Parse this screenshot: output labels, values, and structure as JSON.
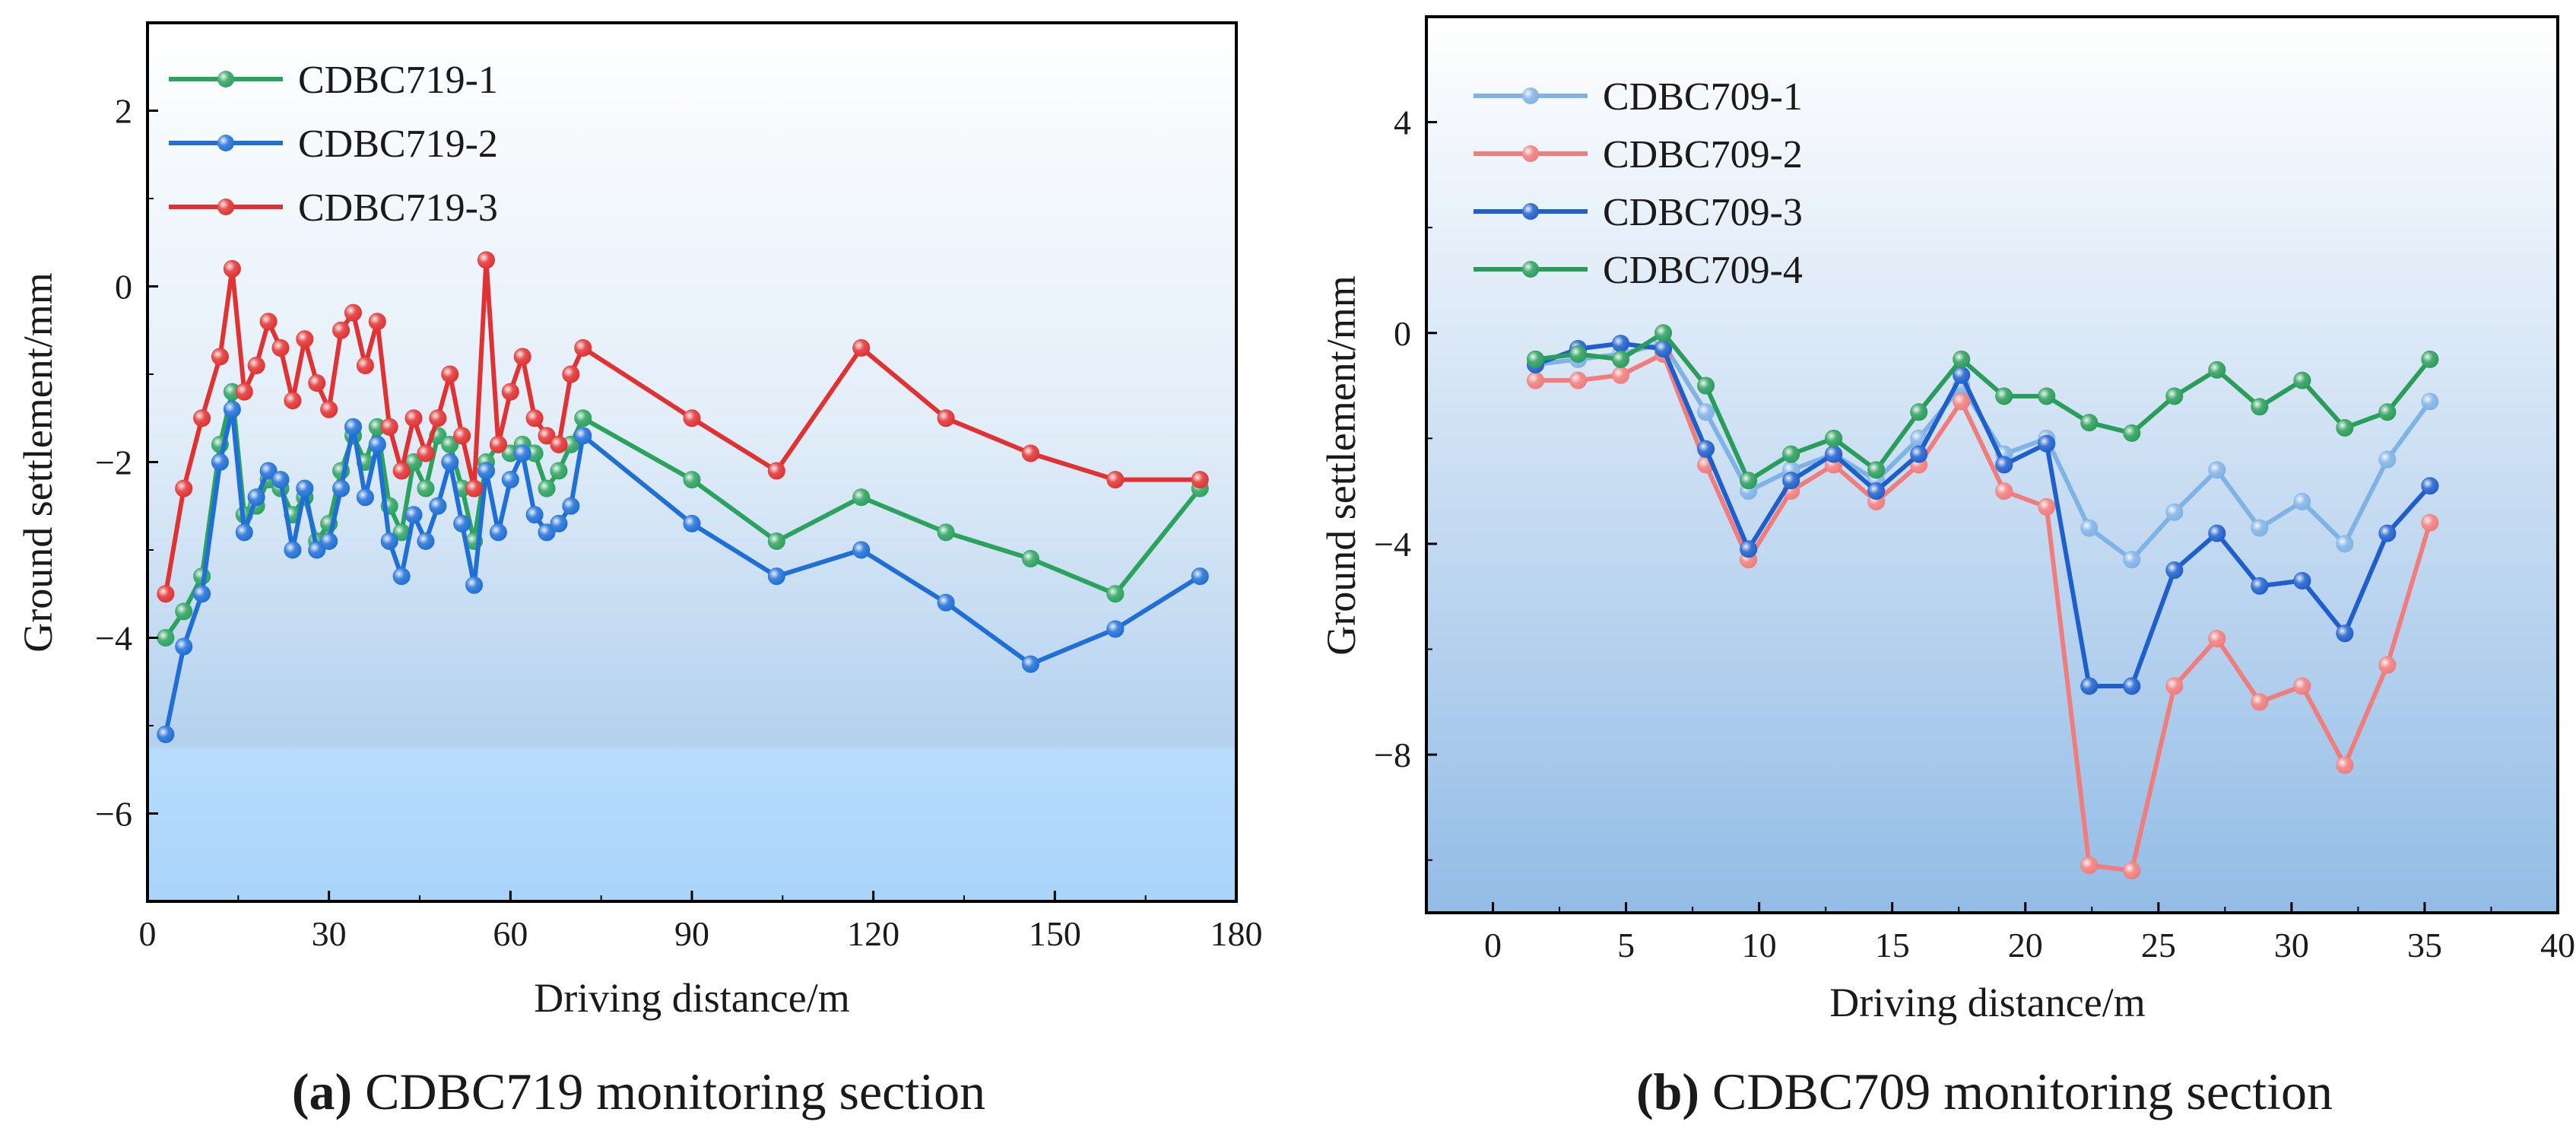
{
  "figure": {
    "caption_a_letter": "(a)",
    "caption_a_text": " CDBC719 monitoring section",
    "caption_b_letter": "(b)",
    "caption_b_text": " CDBC709 monitoring section"
  },
  "chart_data": [
    {
      "type": "line",
      "panel": "a",
      "title": "",
      "xlabel": "Driving distance/m",
      "ylabel": "Ground settlement/mm",
      "xlim": [
        0,
        180
      ],
      "ylim": [
        -7,
        3
      ],
      "xticks": [
        0,
        30,
        60,
        90,
        120,
        150,
        180
      ],
      "yticks": [
        -6,
        -4,
        -2,
        0,
        2
      ],
      "ytick_labels": [
        "−6",
        "−4",
        "−2",
        "0",
        "2"
      ],
      "legend_position": "top-left",
      "grid": false,
      "series": [
        {
          "name": "CDBC719-1",
          "color": "#2ca25f",
          "x": [
            3,
            6,
            9,
            12,
            14,
            16,
            18,
            20,
            22,
            24,
            26,
            28,
            30,
            32,
            34,
            36,
            38,
            40,
            42,
            44,
            46,
            48,
            50,
            52,
            54,
            56,
            58,
            60,
            62,
            64,
            66,
            68,
            70,
            72,
            90,
            104,
            118,
            132,
            146,
            160,
            174
          ],
          "values": [
            -4.0,
            -3.7,
            -3.3,
            -1.8,
            -1.2,
            -2.6,
            -2.5,
            -2.2,
            -2.3,
            -2.6,
            -2.4,
            -2.9,
            -2.7,
            -2.1,
            -1.7,
            -2.0,
            -1.6,
            -2.5,
            -2.8,
            -2.0,
            -2.3,
            -1.7,
            -1.8,
            -2.3,
            -2.9,
            -2.0,
            -1.8,
            -1.9,
            -1.8,
            -1.9,
            -2.3,
            -2.1,
            -1.8,
            -1.5,
            -2.2,
            -2.9,
            -2.4,
            -2.8,
            -3.1,
            -3.5,
            -2.3
          ]
        },
        {
          "name": "CDBC719-2",
          "color": "#1f6fd6",
          "x": [
            3,
            6,
            9,
            12,
            14,
            16,
            18,
            20,
            22,
            24,
            26,
            28,
            30,
            32,
            34,
            36,
            38,
            40,
            42,
            44,
            46,
            48,
            50,
            52,
            54,
            56,
            58,
            60,
            62,
            64,
            66,
            68,
            70,
            72,
            90,
            104,
            118,
            132,
            146,
            160,
            174
          ],
          "values": [
            -5.1,
            -4.1,
            -3.5,
            -2.0,
            -1.4,
            -2.8,
            -2.4,
            -2.1,
            -2.2,
            -3.0,
            -2.3,
            -3.0,
            -2.9,
            -2.3,
            -1.6,
            -2.4,
            -1.8,
            -2.9,
            -3.3,
            -2.6,
            -2.9,
            -2.5,
            -2.0,
            -2.7,
            -3.4,
            -2.1,
            -2.8,
            -2.2,
            -1.9,
            -2.6,
            -2.8,
            -2.7,
            -2.5,
            -1.7,
            -2.7,
            -3.3,
            -3.0,
            -3.6,
            -4.3,
            -3.9,
            -3.3
          ]
        },
        {
          "name": "CDBC719-3",
          "color": "#e03232",
          "x": [
            3,
            6,
            9,
            12,
            14,
            16,
            18,
            20,
            22,
            24,
            26,
            28,
            30,
            32,
            34,
            36,
            38,
            40,
            42,
            44,
            46,
            48,
            50,
            52,
            54,
            56,
            58,
            60,
            62,
            64,
            66,
            68,
            70,
            72,
            90,
            104,
            118,
            132,
            146,
            160,
            174
          ],
          "values": [
            -3.5,
            -2.3,
            -1.5,
            -0.8,
            0.2,
            -1.2,
            -0.9,
            -0.4,
            -0.7,
            -1.3,
            -0.6,
            -1.1,
            -1.4,
            -0.5,
            -0.3,
            -0.9,
            -0.4,
            -1.6,
            -2.1,
            -1.5,
            -1.9,
            -1.5,
            -1.0,
            -1.7,
            -2.3,
            0.3,
            -1.8,
            -1.2,
            -0.8,
            -1.5,
            -1.7,
            -1.8,
            -1.0,
            -0.7,
            -1.5,
            -2.1,
            -0.7,
            -1.5,
            -1.9,
            -2.2,
            -2.2
          ]
        }
      ]
    },
    {
      "type": "line",
      "panel": "b",
      "title": "",
      "xlabel": "Driving distance/m",
      "ylabel": "Ground settlement/mm",
      "xlim": [
        -2.5,
        40
      ],
      "ylim": [
        -11,
        6
      ],
      "xticks": [
        0,
        5,
        10,
        15,
        20,
        25,
        30,
        35,
        40
      ],
      "yticks": [
        -8,
        -4,
        0,
        4
      ],
      "ytick_labels": [
        "−8",
        "−4",
        "0",
        "4"
      ],
      "legend_position": "top-left",
      "grid": false,
      "series": [
        {
          "name": "CDBC709-1",
          "color": "#7fb2e5",
          "x": [
            1.6,
            3.2,
            4.8,
            6.4,
            8.0,
            9.6,
            11.2,
            12.8,
            14.4,
            16.0,
            17.6,
            19.2,
            20.8,
            22.4,
            24.0,
            25.6,
            27.2,
            28.8,
            30.4,
            32.0,
            33.6,
            35.2
          ],
          "values": [
            -0.6,
            -0.5,
            -0.4,
            -0.2,
            -1.5,
            -3.0,
            -2.6,
            -2.3,
            -2.8,
            -2.0,
            -1.0,
            -2.3,
            -2.0,
            -3.7,
            -4.3,
            -3.4,
            -2.6,
            -3.7,
            -3.2,
            -4.0,
            -2.4,
            -1.3
          ]
        },
        {
          "name": "CDBC709-2",
          "color": "#f07c7c",
          "x": [
            1.6,
            3.2,
            4.8,
            6.4,
            8.0,
            9.6,
            11.2,
            12.8,
            14.4,
            16.0,
            17.6,
            19.2,
            20.8,
            22.4,
            24.0,
            25.6,
            27.2,
            28.8,
            30.4,
            32.0,
            33.6,
            35.2
          ],
          "values": [
            -0.9,
            -0.9,
            -0.8,
            -0.4,
            -2.5,
            -4.3,
            -3.0,
            -2.5,
            -3.2,
            -2.5,
            -1.3,
            -3.0,
            -3.3,
            -10.1,
            -10.2,
            -6.7,
            -5.8,
            -7.0,
            -6.7,
            -8.2,
            -6.3,
            -3.6
          ]
        },
        {
          "name": "CDBC709-3",
          "color": "#1f5fcc",
          "x": [
            1.6,
            3.2,
            4.8,
            6.4,
            8.0,
            9.6,
            11.2,
            12.8,
            14.4,
            16.0,
            17.6,
            19.2,
            20.8,
            22.4,
            24.0,
            25.6,
            27.2,
            28.8,
            30.4,
            32.0,
            33.6,
            35.2
          ],
          "values": [
            -0.6,
            -0.3,
            -0.2,
            -0.3,
            -2.2,
            -4.1,
            -2.8,
            -2.3,
            -3.0,
            -2.3,
            -0.8,
            -2.5,
            -2.1,
            -6.7,
            -6.7,
            -4.5,
            -3.8,
            -4.8,
            -4.7,
            -5.7,
            -3.8,
            -2.9
          ]
        },
        {
          "name": "CDBC709-4",
          "color": "#2a9d5a",
          "x": [
            1.6,
            3.2,
            4.8,
            6.4,
            8.0,
            9.6,
            11.2,
            12.8,
            14.4,
            16.0,
            17.6,
            19.2,
            20.8,
            22.4,
            24.0,
            25.6,
            27.2,
            28.8,
            30.4,
            32.0,
            33.6,
            35.2
          ],
          "values": [
            -0.5,
            -0.4,
            -0.5,
            0.0,
            -1.0,
            -2.8,
            -2.3,
            -2.0,
            -2.6,
            -1.5,
            -0.5,
            -1.2,
            -1.2,
            -1.7,
            -1.9,
            -1.2,
            -0.7,
            -1.4,
            -0.9,
            -1.8,
            -1.5,
            -0.5
          ]
        }
      ]
    }
  ]
}
